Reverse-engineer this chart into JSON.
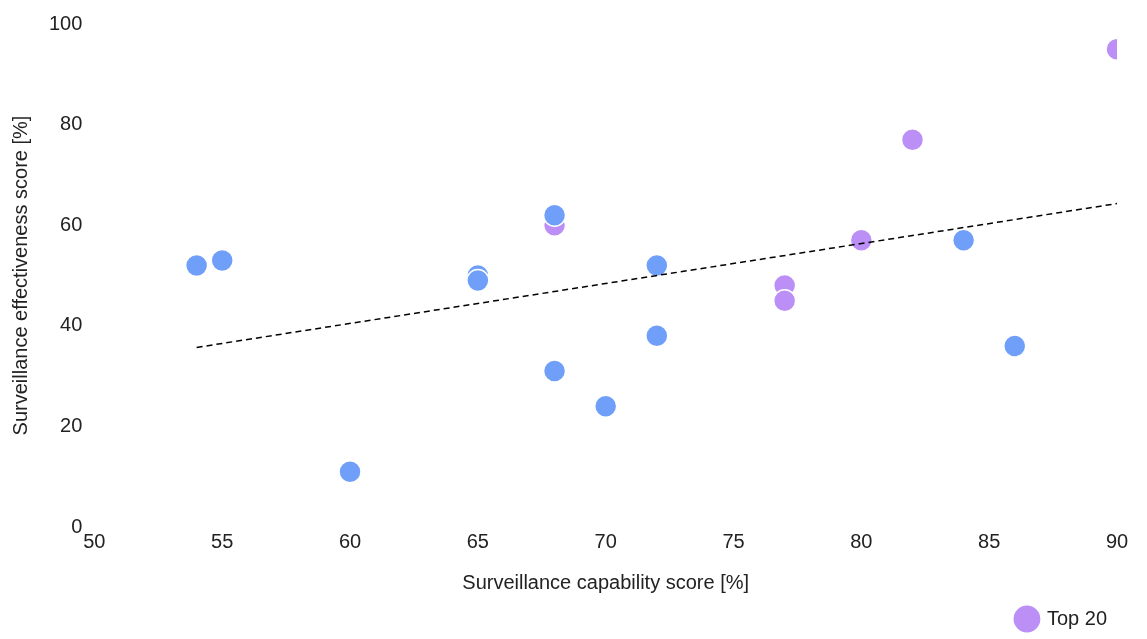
{
  "chart_data": {
    "type": "scatter",
    "xlabel": "Surveillance capability score [%]",
    "ylabel": "Surveillance effectiveness score [%]",
    "xlim": [
      50,
      90
    ],
    "xticks": [
      50,
      55,
      60,
      65,
      70,
      75,
      80,
      85,
      90
    ],
    "ylim": [
      0,
      100
    ],
    "yticks": [
      0,
      20,
      40,
      60,
      80,
      100
    ],
    "grid": false,
    "legend": "bottom right",
    "marker": "circle",
    "series": [
      {
        "color": "#6f9ff9",
        "x": [
          54,
          55,
          60,
          65,
          65,
          68,
          68,
          70,
          72,
          72,
          84,
          86
        ],
        "values": [
          52,
          53,
          11,
          50,
          49,
          62,
          31,
          24,
          52,
          38,
          57,
          36
        ]
      },
      {
        "name": "Top 20",
        "color": "#bb8ff6",
        "x": [
          68,
          77,
          77,
          80,
          82,
          90
        ],
        "values": [
          60,
          48,
          45,
          57,
          77,
          95
        ]
      },
      {
        "type": "line",
        "color": "#000000",
        "line_style": "dashed",
        "marker": "none",
        "x": [
          54,
          90
        ],
        "values": [
          35.7,
          64.3
        ]
      }
    ]
  }
}
